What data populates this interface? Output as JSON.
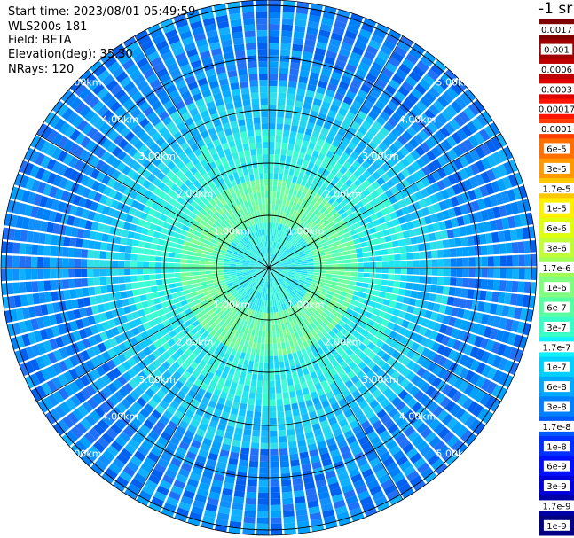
{
  "header": {
    "start_time": "Start time: 2023/08/01 05:49:59",
    "instrument": "WLS200s-181",
    "field": "Field: BETA",
    "elevation": "Elevation(deg): 35.30",
    "nrays": "NRays: 120"
  },
  "colorbar": {
    "units": "-1 sr",
    "labels": [
      "0.0017",
      "0.001",
      "0.0006",
      "0.0003",
      "0.00017",
      "0.0001",
      "6e-5",
      "3e-5",
      "1.7e-5",
      "1e-5",
      "6e-6",
      "3e-6",
      "1.7e-6",
      "1e-6",
      "6e-7",
      "3e-7",
      "1.7e-7",
      "1e-7",
      "6e-8",
      "3e-8",
      "1.7e-8",
      "1e-8",
      "6e-9",
      "3e-9",
      "1.7e-9",
      "1e-9"
    ],
    "colors": [
      "#800000",
      "#a00000",
      "#c00000",
      "#e00000",
      "#ff1400",
      "#ff4000",
      "#ff7000",
      "#ff9a00",
      "#ffc800",
      "#fff000",
      "#e0ff10",
      "#c0ff38",
      "#a0ff58",
      "#80ff80",
      "#58ffa0",
      "#38ffc8",
      "#10f0ff",
      "#00d0ff",
      "#00a8ff",
      "#0080ff",
      "#0058ff",
      "#0030ff",
      "#0010ff",
      "#0000d8",
      "#0000a8",
      "#000080"
    ]
  },
  "range_rings": {
    "labels": [
      "1.00km",
      "2.00km",
      "3.00km",
      "4.00km",
      "5.00km"
    ]
  },
  "ppi": {
    "nrays": 120
  }
}
